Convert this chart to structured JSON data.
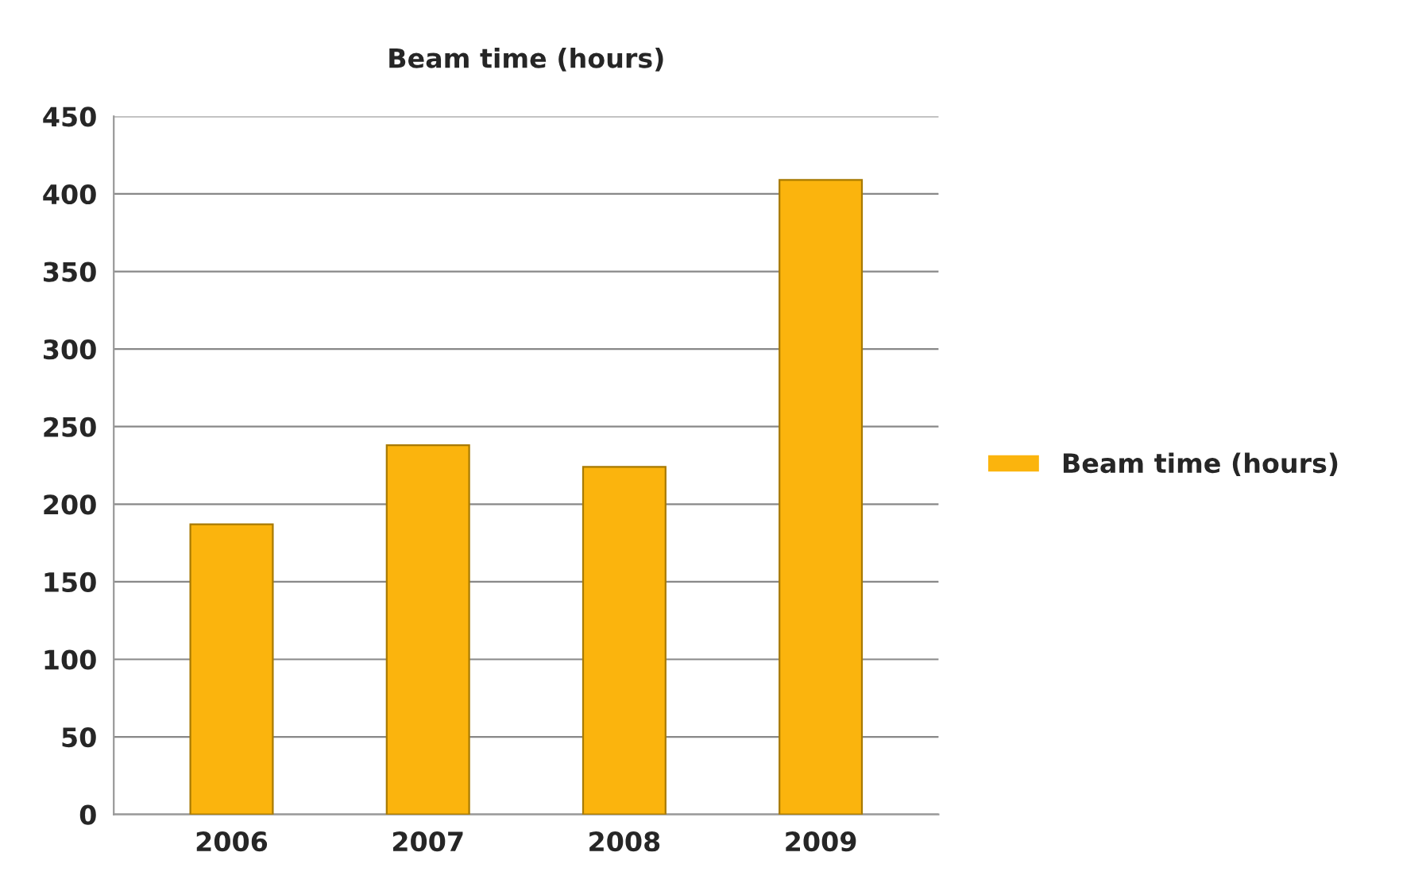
{
  "chart_data": {
    "type": "bar",
    "title": "Beam time (hours)",
    "categories": [
      "2006",
      "2007",
      "2008",
      "2009"
    ],
    "series": [
      {
        "name": "Beam time (hours)",
        "color": "#fbb40d",
        "values": [
          187,
          238,
          224,
          409
        ]
      }
    ],
    "ylim": [
      0,
      450
    ],
    "yticks": [
      0,
      50,
      100,
      150,
      200,
      250,
      300,
      350,
      400,
      450
    ],
    "grid": "y",
    "legend": "right"
  }
}
